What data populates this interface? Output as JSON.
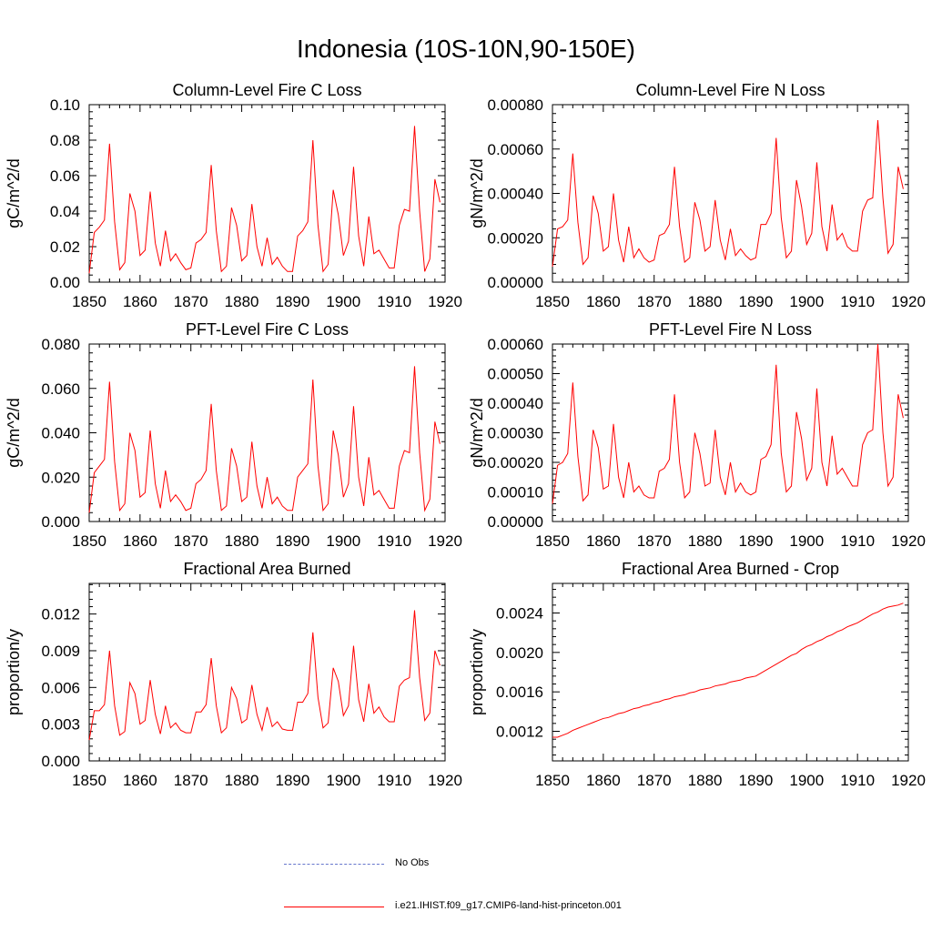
{
  "title": "Indonesia (10S-10N,90-150E)",
  "colors": {
    "series": "#ff0000",
    "obs": "#6677cc",
    "axis": "#000000"
  },
  "legend": [
    {
      "label": "No Obs",
      "style": "dashed",
      "color": "#6677cc"
    },
    {
      "label": "i.e21.IHIST.f09_g17.CMIP6-land-hist-princeton.001",
      "style": "solid",
      "color": "#ff0000"
    }
  ],
  "chart_data": [
    {
      "type": "line",
      "title": "Column-Level Fire C Loss",
      "ylabel": "gC/m^2/d",
      "xlim": [
        1850,
        1920
      ],
      "ylim": [
        0,
        0.1
      ],
      "xticks": [
        "1850",
        "1860",
        "1870",
        "1880",
        "1890",
        "1900",
        "1910",
        "1920"
      ],
      "yticks": [
        "0.00",
        "0.02",
        "0.04",
        "0.06",
        "0.08",
        "0.10"
      ],
      "series": [
        {
          "values": [
            0.005,
            0.028,
            0.031,
            0.035,
            0.078,
            0.034,
            0.007,
            0.011,
            0.05,
            0.04,
            0.015,
            0.018,
            0.051,
            0.022,
            0.009,
            0.029,
            0.012,
            0.016,
            0.011,
            0.007,
            0.008,
            0.022,
            0.024,
            0.028,
            0.066,
            0.029,
            0.006,
            0.009,
            0.042,
            0.032,
            0.012,
            0.015,
            0.044,
            0.02,
            0.009,
            0.025,
            0.01,
            0.014,
            0.009,
            0.006,
            0.006,
            0.026,
            0.029,
            0.034,
            0.08,
            0.032,
            0.006,
            0.01,
            0.052,
            0.038,
            0.015,
            0.023,
            0.065,
            0.026,
            0.009,
            0.037,
            0.016,
            0.018,
            0.013,
            0.008,
            0.008,
            0.032,
            0.041,
            0.04,
            0.088,
            0.04,
            0.006,
            0.013,
            0.058,
            0.045
          ]
        }
      ]
    },
    {
      "type": "line",
      "title": "Column-Level Fire N Loss",
      "ylabel": "gN/m^2/d",
      "xlim": [
        1850,
        1920
      ],
      "ylim": [
        0,
        0.0008
      ],
      "xticks": [
        "1850",
        "1860",
        "1870",
        "1880",
        "1890",
        "1900",
        "1910",
        "1920"
      ],
      "yticks": [
        "0.00000",
        "0.00020",
        "0.00040",
        "0.00060",
        "0.00080"
      ],
      "series": [
        {
          "values": [
            7e-05,
            0.00024,
            0.00025,
            0.00028,
            0.00058,
            0.00027,
            8e-05,
            0.00011,
            0.00039,
            0.00031,
            0.00014,
            0.00016,
            0.0004,
            0.00019,
            9e-05,
            0.00025,
            0.00011,
            0.00015,
            0.00011,
            9e-05,
            0.0001,
            0.00021,
            0.00022,
            0.00026,
            0.00052,
            0.00025,
            9e-05,
            0.00011,
            0.00036,
            0.00028,
            0.00014,
            0.00016,
            0.00037,
            0.00019,
            0.0001,
            0.00024,
            0.00012,
            0.00015,
            0.00012,
            0.0001,
            0.00011,
            0.00026,
            0.00026,
            0.00031,
            0.00065,
            0.00029,
            0.00011,
            0.00014,
            0.00046,
            0.00034,
            0.00017,
            0.00022,
            0.00054,
            0.00025,
            0.00014,
            0.00035,
            0.00019,
            0.00022,
            0.00016,
            0.00014,
            0.00014,
            0.00032,
            0.00037,
            0.00038,
            0.00073,
            0.00038,
            0.00013,
            0.00017,
            0.00052,
            0.00042
          ]
        }
      ]
    },
    {
      "type": "line",
      "title": "PFT-Level Fire C Loss",
      "ylabel": "gC/m^2/d",
      "xlim": [
        1850,
        1920
      ],
      "ylim": [
        0,
        0.08
      ],
      "xticks": [
        "1850",
        "1860",
        "1870",
        "1880",
        "1890",
        "1900",
        "1910",
        "1920"
      ],
      "yticks": [
        "0.000",
        "0.020",
        "0.040",
        "0.060",
        "0.080"
      ],
      "series": [
        {
          "values": [
            0.004,
            0.022,
            0.025,
            0.028,
            0.063,
            0.027,
            0.005,
            0.008,
            0.04,
            0.032,
            0.011,
            0.013,
            0.041,
            0.017,
            0.006,
            0.023,
            0.009,
            0.012,
            0.009,
            0.005,
            0.006,
            0.017,
            0.019,
            0.023,
            0.053,
            0.023,
            0.005,
            0.007,
            0.033,
            0.025,
            0.009,
            0.011,
            0.036,
            0.016,
            0.006,
            0.02,
            0.008,
            0.011,
            0.007,
            0.005,
            0.005,
            0.02,
            0.023,
            0.026,
            0.064,
            0.025,
            0.005,
            0.008,
            0.041,
            0.03,
            0.011,
            0.017,
            0.052,
            0.02,
            0.007,
            0.029,
            0.012,
            0.014,
            0.01,
            0.006,
            0.006,
            0.025,
            0.032,
            0.031,
            0.07,
            0.031,
            0.005,
            0.01,
            0.045,
            0.035
          ]
        }
      ]
    },
    {
      "type": "line",
      "title": "PFT-Level Fire N Loss",
      "ylabel": "gN/m^2/d",
      "xlim": [
        1850,
        1920
      ],
      "ylim": [
        0,
        0.0006
      ],
      "xticks": [
        "1850",
        "1860",
        "1870",
        "1880",
        "1890",
        "1900",
        "1910",
        "1920"
      ],
      "yticks": [
        "0.00000",
        "0.00010",
        "0.00020",
        "0.00030",
        "0.00040",
        "0.00050",
        "0.00060"
      ],
      "series": [
        {
          "values": [
            6e-05,
            0.00019,
            0.0002,
            0.00023,
            0.00047,
            0.00022,
            7e-05,
            9e-05,
            0.00031,
            0.00025,
            0.00011,
            0.00012,
            0.00033,
            0.00015,
            8e-05,
            0.0002,
            0.0001,
            0.00012,
            9e-05,
            8e-05,
            8e-05,
            0.00017,
            0.00018,
            0.00021,
            0.00043,
            0.0002,
            8e-05,
            0.0001,
            0.0003,
            0.00023,
            0.00012,
            0.00013,
            0.00031,
            0.00015,
            9e-05,
            0.0002,
            0.0001,
            0.00013,
            0.0001,
            9e-05,
            0.0001,
            0.00021,
            0.00022,
            0.00026,
            0.00053,
            0.00023,
            0.0001,
            0.00012,
            0.00037,
            0.00028,
            0.00014,
            0.00018,
            0.00045,
            0.0002,
            0.00012,
            0.00029,
            0.00016,
            0.00018,
            0.00015,
            0.00012,
            0.00012,
            0.00026,
            0.0003,
            0.00031,
            0.0006,
            0.0003,
            0.00012,
            0.00015,
            0.00043,
            0.00035
          ]
        }
      ]
    },
    {
      "type": "line",
      "title": "Fractional Area Burned",
      "ylabel": "proportion/y",
      "xlim": [
        1850,
        1920
      ],
      "ylim": [
        0,
        0.0145
      ],
      "xticks": [
        "1850",
        "1860",
        "1870",
        "1880",
        "1890",
        "1900",
        "1910",
        "1920"
      ],
      "yticks": [
        "0.000",
        "0.003",
        "0.006",
        "0.009",
        "0.012"
      ],
      "series": [
        {
          "values": [
            0.0017,
            0.0041,
            0.0041,
            0.0046,
            0.009,
            0.0045,
            0.0021,
            0.0024,
            0.0064,
            0.0055,
            0.003,
            0.0033,
            0.0066,
            0.0038,
            0.0022,
            0.0045,
            0.0027,
            0.0031,
            0.0025,
            0.0023,
            0.0023,
            0.004,
            0.004,
            0.0046,
            0.0084,
            0.0045,
            0.0023,
            0.0027,
            0.006,
            0.0051,
            0.0031,
            0.0034,
            0.0062,
            0.0038,
            0.0025,
            0.0044,
            0.0028,
            0.0032,
            0.0026,
            0.0025,
            0.0025,
            0.0048,
            0.0048,
            0.0055,
            0.0105,
            0.0052,
            0.0027,
            0.0031,
            0.0076,
            0.0065,
            0.0037,
            0.0045,
            0.0094,
            0.005,
            0.0032,
            0.0063,
            0.0039,
            0.0044,
            0.0036,
            0.0032,
            0.0032,
            0.0061,
            0.0066,
            0.0068,
            0.0123,
            0.0068,
            0.0033,
            0.0039,
            0.009,
            0.0078
          ]
        }
      ]
    },
    {
      "type": "line",
      "title": "Fractional Area Burned - Crop",
      "ylabel": "proportion/y",
      "xlim": [
        1850,
        1920
      ],
      "ylim": [
        0.0009,
        0.0027
      ],
      "xticks": [
        "1850",
        "1860",
        "1870",
        "1880",
        "1890",
        "1900",
        "1910",
        "1920"
      ],
      "yticks": [
        "0.0012",
        "0.0016",
        "0.0020",
        "0.0024"
      ],
      "series": [
        {
          "values": [
            0.00114,
            0.00114,
            0.00116,
            0.00118,
            0.00121,
            0.00123,
            0.00125,
            0.00127,
            0.00129,
            0.00131,
            0.00133,
            0.00134,
            0.00136,
            0.00138,
            0.00139,
            0.00141,
            0.00143,
            0.00144,
            0.00146,
            0.00147,
            0.00149,
            0.0015,
            0.00152,
            0.00153,
            0.00155,
            0.00156,
            0.00157,
            0.00159,
            0.0016,
            0.00162,
            0.00163,
            0.00164,
            0.00166,
            0.00167,
            0.00168,
            0.0017,
            0.00171,
            0.00172,
            0.00174,
            0.00175,
            0.00176,
            0.00179,
            0.00182,
            0.00185,
            0.00188,
            0.00191,
            0.00194,
            0.00197,
            0.00199,
            0.00203,
            0.00206,
            0.00208,
            0.00211,
            0.00213,
            0.00216,
            0.00218,
            0.00221,
            0.00223,
            0.00226,
            0.00228,
            0.0023,
            0.00233,
            0.00236,
            0.00239,
            0.00241,
            0.00244,
            0.00246,
            0.00247,
            0.00248,
            0.0025
          ]
        }
      ]
    }
  ]
}
